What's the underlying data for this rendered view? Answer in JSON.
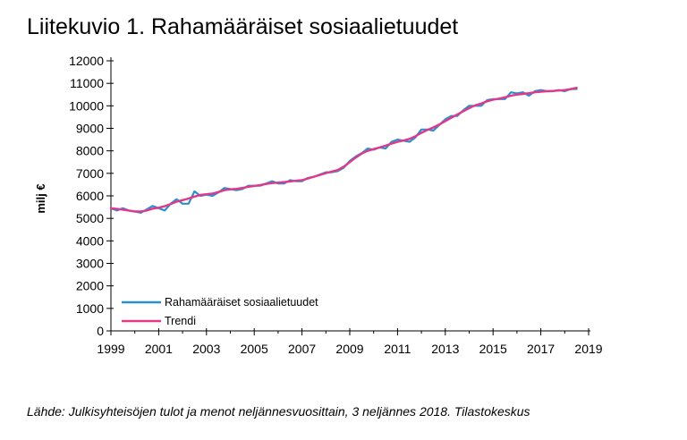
{
  "title": "Liitekuvio 1. Rahamääräiset sosiaalietuudet",
  "source": "Lähde: Julkisyhteisöjen tulot ja menot neljännesvuosittain, 3 neljännes 2018. Tilastokeskus",
  "colors": {
    "series": "#2b8fcf",
    "trend": "#e0398a"
  },
  "chart_data": {
    "type": "line",
    "title": "Liitekuvio 1. Rahamääräiset sosiaalietuudet",
    "xlabel": "",
    "ylabel": "milj €",
    "xlim": [
      1999,
      2019
    ],
    "ylim": [
      0,
      12000
    ],
    "x_ticks": [
      "1999",
      "2001",
      "2003",
      "2005",
      "2007",
      "2009",
      "2011",
      "2013",
      "2015",
      "2017",
      "2019"
    ],
    "y_ticks": [
      "0",
      "1000",
      "2000",
      "3000",
      "4000",
      "5000",
      "6000",
      "7000",
      "8000",
      "9000",
      "10000",
      "11000",
      "12000"
    ],
    "grid": false,
    "legend_position": "bottom-left",
    "x": [
      1999.0,
      1999.25,
      1999.5,
      1999.75,
      2000.0,
      2000.25,
      2000.5,
      2000.75,
      2001.0,
      2001.25,
      2001.5,
      2001.75,
      2002.0,
      2002.25,
      2002.5,
      2002.75,
      2003.0,
      2003.25,
      2003.5,
      2003.75,
      2004.0,
      2004.25,
      2004.5,
      2004.75,
      2005.0,
      2005.25,
      2005.5,
      2005.75,
      2006.0,
      2006.25,
      2006.5,
      2006.75,
      2007.0,
      2007.25,
      2007.5,
      2007.75,
      2008.0,
      2008.25,
      2008.5,
      2008.75,
      2009.0,
      2009.25,
      2009.5,
      2009.75,
      2010.0,
      2010.25,
      2010.5,
      2010.75,
      2011.0,
      2011.25,
      2011.5,
      2011.75,
      2012.0,
      2012.25,
      2012.5,
      2012.75,
      2013.0,
      2013.25,
      2013.5,
      2013.75,
      2014.0,
      2014.25,
      2014.5,
      2014.75,
      2015.0,
      2015.25,
      2015.5,
      2015.75,
      2016.0,
      2016.25,
      2016.5,
      2016.75,
      2017.0,
      2017.25,
      2017.5,
      2017.75,
      2018.0,
      2018.25,
      2018.5
    ],
    "series": [
      {
        "name": "Rahamääräiset sosiaalietuudet",
        "values": [
          5450,
          5350,
          5450,
          5350,
          5300,
          5250,
          5400,
          5550,
          5450,
          5350,
          5650,
          5850,
          5650,
          5650,
          6200,
          6000,
          6050,
          6000,
          6150,
          6350,
          6300,
          6250,
          6300,
          6450,
          6450,
          6450,
          6550,
          6650,
          6550,
          6550,
          6700,
          6650,
          6650,
          6800,
          6850,
          6950,
          7050,
          7050,
          7100,
          7250,
          7550,
          7750,
          7900,
          8100,
          8050,
          8150,
          8100,
          8400,
          8500,
          8450,
          8400,
          8600,
          8950,
          8950,
          8900,
          9150,
          9400,
          9550,
          9550,
          9800,
          10000,
          10000,
          10000,
          10250,
          10300,
          10300,
          10300,
          10600,
          10550,
          10600,
          10450,
          10650,
          10700,
          10650,
          10650,
          10700,
          10650,
          10750,
          10750
        ]
      },
      {
        "name": "Trendi",
        "values": [
          5450,
          5420,
          5390,
          5350,
          5310,
          5310,
          5350,
          5430,
          5470,
          5540,
          5640,
          5740,
          5810,
          5880,
          5970,
          6040,
          6070,
          6100,
          6170,
          6250,
          6290,
          6310,
          6350,
          6400,
          6440,
          6480,
          6530,
          6570,
          6590,
          6610,
          6640,
          6670,
          6700,
          6770,
          6850,
          6930,
          7010,
          7080,
          7150,
          7300,
          7500,
          7700,
          7880,
          8000,
          8080,
          8150,
          8230,
          8320,
          8400,
          8460,
          8530,
          8650,
          8800,
          8930,
          9040,
          9170,
          9320,
          9470,
          9610,
          9760,
          9900,
          10020,
          10100,
          10200,
          10270,
          10320,
          10380,
          10450,
          10500,
          10530,
          10560,
          10600,
          10630,
          10650,
          10660,
          10680,
          10700,
          10740,
          10800
        ]
      }
    ]
  }
}
